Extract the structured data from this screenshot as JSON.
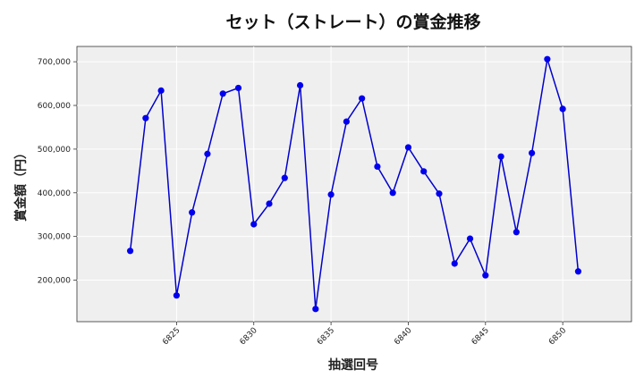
{
  "chart_data": {
    "type": "line",
    "title": "セット（ストレート）の賞金推移",
    "xlabel": "抽選回号",
    "ylabel": "賞金額（円）",
    "x": [
      6822,
      6823,
      6824,
      6825,
      6826,
      6827,
      6828,
      6829,
      6830,
      6831,
      6832,
      6833,
      6834,
      6835,
      6836,
      6837,
      6838,
      6839,
      6840,
      6841,
      6842,
      6843,
      6844,
      6845,
      6846,
      6847,
      6848,
      6849,
      6850,
      6851
    ],
    "values": [
      267000,
      571000,
      634000,
      165000,
      355000,
      489000,
      627000,
      640000,
      328000,
      375000,
      434000,
      646000,
      134000,
      396000,
      563000,
      616000,
      460000,
      400000,
      504000,
      449000,
      398000,
      238000,
      295000,
      211000,
      483000,
      310000,
      491000,
      706000,
      592000,
      220000
    ],
    "xlim": [
      6818.55,
      6854.45
    ],
    "ylim": [
      105000,
      735000
    ],
    "xticks": [
      6825,
      6830,
      6835,
      6840,
      6845,
      6850
    ],
    "xtick_labels": [
      "6825",
      "6830",
      "6835",
      "6840",
      "6845",
      "6850"
    ],
    "yticks": [
      200000,
      300000,
      400000,
      500000,
      600000,
      700000
    ],
    "ytick_labels": [
      "200,000",
      "300,000",
      "400,000",
      "500,000",
      "600,000",
      "700,000"
    ],
    "grid": true,
    "colors": {
      "line": "#0000cc",
      "marker": "#0000ee",
      "plot_bg": "#efefef",
      "grid": "#ffffff"
    }
  }
}
